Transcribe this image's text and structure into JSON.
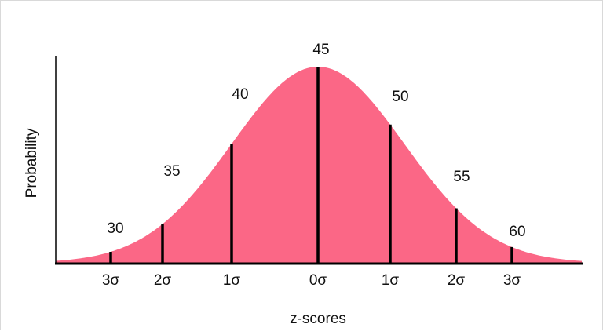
{
  "chart_data": {
    "type": "area",
    "title": "",
    "xlabel": "z-scores",
    "ylabel": "Probability",
    "fill_color": "#fb6786",
    "mean": 45,
    "std_dev": 5,
    "x_tick_labels": [
      "3σ",
      "2σ",
      "1σ",
      "0σ",
      "1σ",
      "2σ",
      "3σ"
    ],
    "value_labels": [
      "30",
      "35",
      "40",
      "45",
      "50",
      "55",
      "60"
    ],
    "z": [
      -3,
      -2,
      -1,
      0,
      1,
      2,
      3
    ],
    "grid": false
  }
}
